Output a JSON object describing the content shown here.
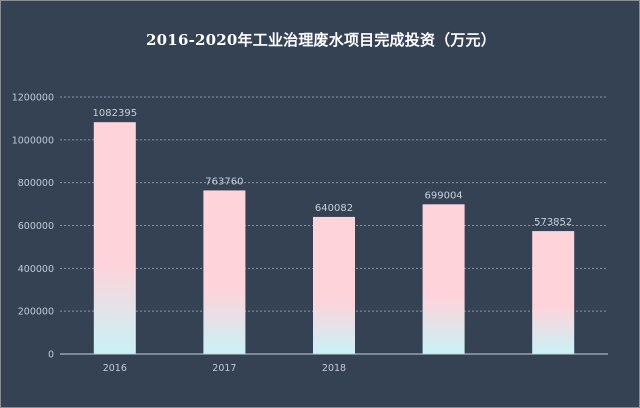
{
  "chart_data": {
    "type": "bar",
    "title": "2016-2020年工业治理废水项目完成投资（万元）",
    "categories": [
      "2016",
      "2017",
      "2018",
      "",
      ""
    ],
    "values": [
      1082395,
      763760,
      640082,
      699004,
      573852
    ],
    "data_labels": [
      "1082395",
      "763760",
      "640082",
      "699004",
      "573852"
    ],
    "y_ticks": [
      0,
      200000,
      400000,
      600000,
      800000,
      1000000,
      1200000
    ],
    "ylim": [
      0,
      1200000
    ],
    "xlabel": "",
    "ylabel": "",
    "grid": true,
    "legend": "none",
    "colors": {
      "background": "#344254",
      "bar_top": "#ffd3da",
      "bar_bottom": "#c9f2f6",
      "title": "#ffffff",
      "grid": "#8a97a8"
    }
  }
}
